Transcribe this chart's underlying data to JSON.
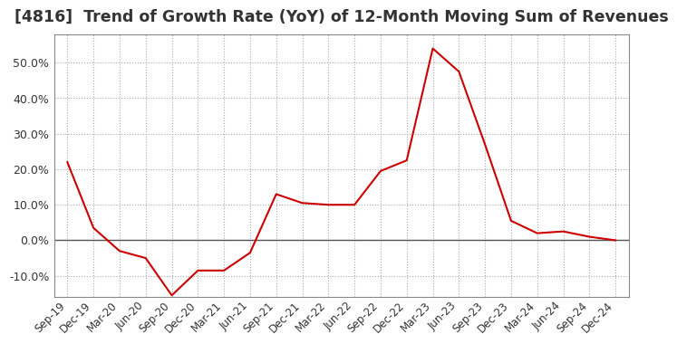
{
  "title": "[4816]  Trend of Growth Rate (YoY) of 12-Month Moving Sum of Revenues",
  "title_fontsize": 12.5,
  "line_color": "#CC0000",
  "background_color": "#FFFFFF",
  "grid_color": "#AAAAAA",
  "zero_line_color": "#555555",
  "ylim": [
    -16,
    58
  ],
  "yticks": [
    -10.0,
    0.0,
    10.0,
    20.0,
    30.0,
    40.0,
    50.0
  ],
  "x_labels": [
    "Sep-19",
    "Dec-19",
    "Mar-20",
    "Jun-20",
    "Sep-20",
    "Dec-20",
    "Mar-21",
    "Jun-21",
    "Sep-21",
    "Dec-21",
    "Mar-22",
    "Jun-22",
    "Sep-22",
    "Dec-22",
    "Mar-23",
    "Jun-23",
    "Sep-23",
    "Dec-23",
    "Mar-24",
    "Jun-24",
    "Sep-24",
    "Dec-24"
  ],
  "y_values": [
    22.0,
    3.5,
    -3.0,
    -5.0,
    -15.5,
    -8.5,
    -8.5,
    -3.5,
    13.0,
    10.5,
    10.0,
    10.0,
    19.5,
    22.5,
    54.0,
    47.5,
    27.0,
    5.5,
    2.0,
    2.5,
    1.0,
    0.0
  ]
}
